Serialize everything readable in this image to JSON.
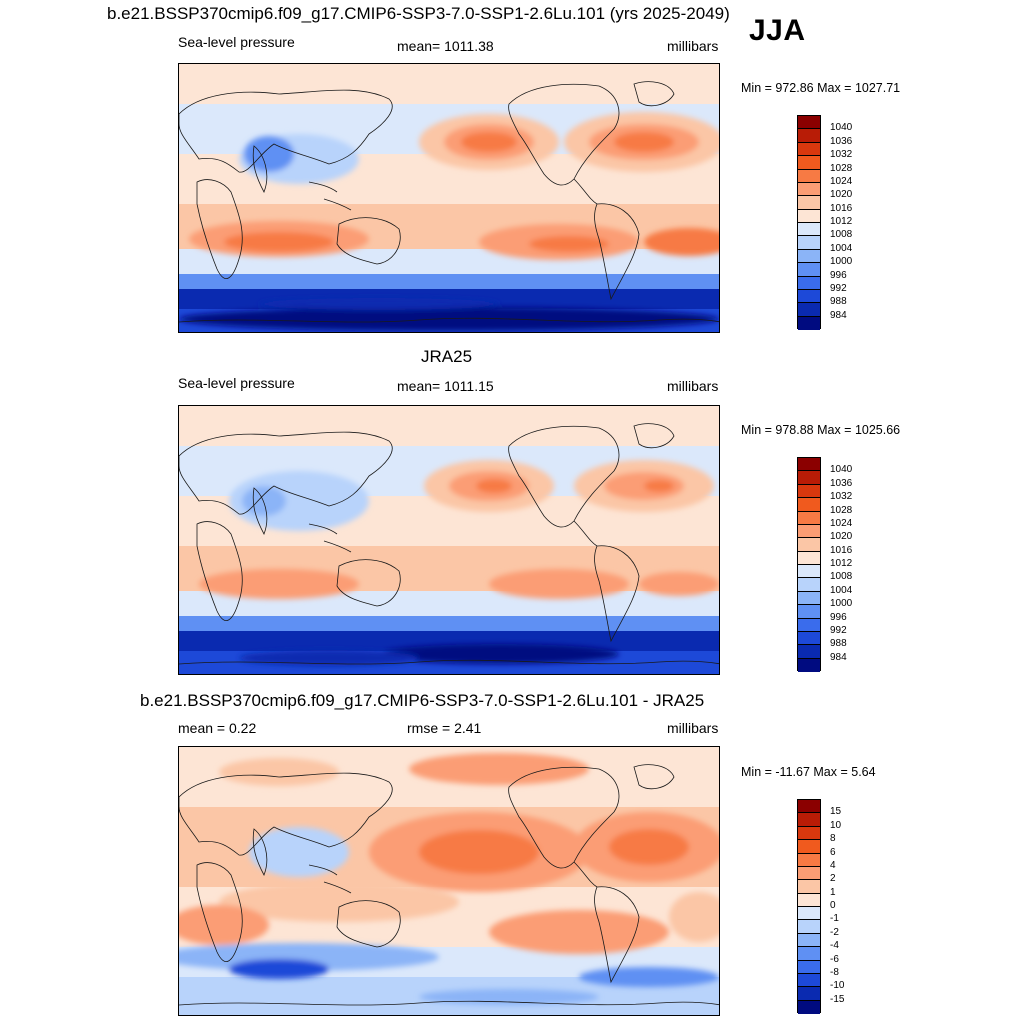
{
  "season": "JJA",
  "panels": [
    {
      "title": "b.e21.BSSP370cmip6.f09_g17.CMIP6-SSP3-7.0-SSP1-2.6Lu.101 (yrs 2025-2049)",
      "left_label": "Sea-level pressure",
      "center_label": "mean= 1011.38",
      "right_label": "millibars",
      "minmax": "Min = 972.86 Max = 1027.71"
    },
    {
      "title": "JRA25",
      "left_label": "Sea-level pressure",
      "center_label": "mean= 1011.15",
      "right_label": "millibars",
      "minmax": "Min = 978.88 Max = 1025.66"
    },
    {
      "title": "b.e21.BSSP370cmip6.f09_g17.CMIP6-SSP3-7.0-SSP1-2.6Lu.101 - JRA25",
      "left_label": "mean =   0.22",
      "center_label": "rmse =   2.41",
      "right_label": "millibars",
      "minmax": "Min = -11.67 Max =   5.64"
    }
  ],
  "colorbars": {
    "absolute": {
      "labels": [
        "1040",
        "1036",
        "1032",
        "1028",
        "1024",
        "1020",
        "1016",
        "1012",
        "1008",
        "1004",
        "1000",
        "996",
        "992",
        "988",
        "984"
      ],
      "colors": [
        "#8b0000",
        "#b81c06",
        "#d8380e",
        "#f05a1e",
        "#f77a44",
        "#fb9d74",
        "#fbc6a6",
        "#fde5d5",
        "#dbe8fb",
        "#b8d3fb",
        "#8bb4f7",
        "#5f90f3",
        "#3a6cec",
        "#1d49d8",
        "#0a2ab0",
        "#000b80"
      ]
    },
    "difference": {
      "labels": [
        "15",
        "10",
        "8",
        "6",
        "4",
        "2",
        "1",
        "0",
        "-1",
        "-2",
        "-4",
        "-6",
        "-8",
        "-10",
        "-15"
      ],
      "colors": [
        "#8b0000",
        "#b81c06",
        "#d8380e",
        "#f05a1e",
        "#f77a44",
        "#fb9d74",
        "#fbc6a6",
        "#fde5d5",
        "#dbe8fb",
        "#b8d3fb",
        "#8bb4f7",
        "#5f90f3",
        "#3a6cec",
        "#1d49d8",
        "#0a2ab0",
        "#000b80"
      ]
    }
  }
}
